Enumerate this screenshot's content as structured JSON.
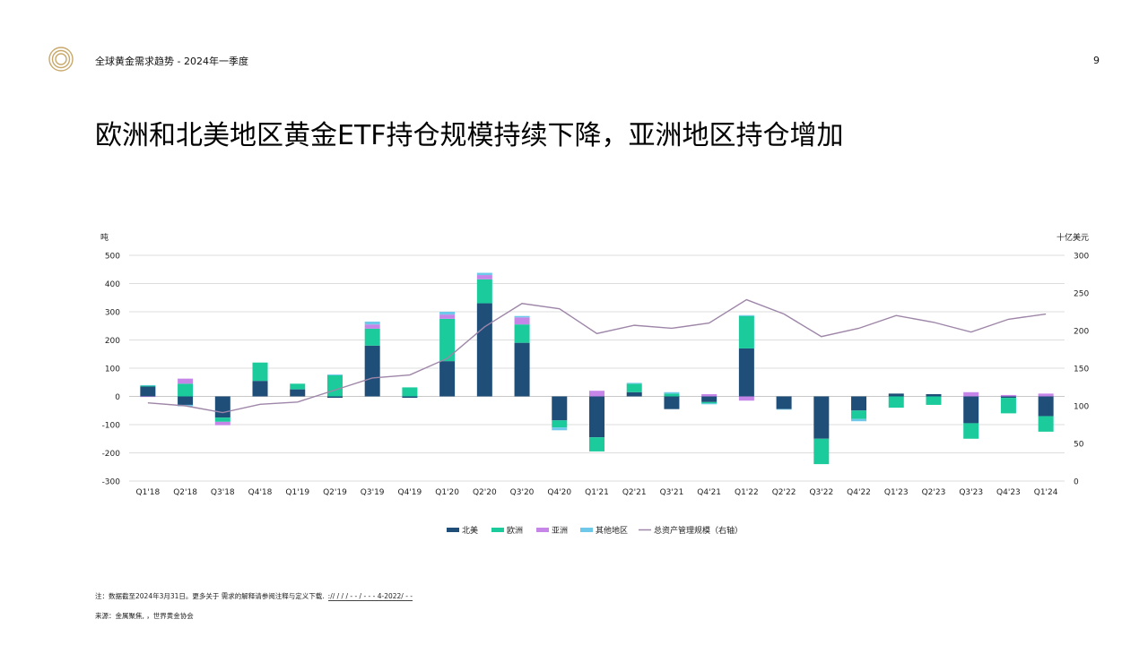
{
  "header": {
    "doc_title": "全球黄金需求趋势 - 2024年一季度",
    "page_number": "9"
  },
  "headline": "欧洲和北美地区黄金ETF持仓规模持续下降，亚洲地区持仓增加",
  "footer": {
    "note": "注：数据截至2024年3月31日。更多关于    需求的解释请参阅注释与定义下载.",
    "note_link": "  ://          /        /        /    -        -      /    -        -     - 4-2022/      -    -",
    "source": "来源：金属聚焦,                    ，世界黄金协会"
  },
  "colors": {
    "north_america": "#1f4e79",
    "europe": "#1ccb9c",
    "asia": "#c586e8",
    "other": "#6ec8ea",
    "aum_line": "#9e86a8",
    "grid": "#dddddd",
    "zero_line": "#c8c8c8"
  },
  "chart_data": {
    "type": "bar",
    "stacked": true,
    "ylabel": "吨",
    "y2label": "十亿美元",
    "ylim": [
      -300,
      500
    ],
    "y2lim": [
      0,
      300
    ],
    "yticks": [
      500,
      400,
      300,
      200,
      100,
      0,
      -100,
      -200,
      -300
    ],
    "y2ticks": [
      300,
      250,
      200,
      150,
      100,
      50,
      0
    ],
    "grid": true,
    "legend_position": "bottom",
    "categories": [
      "Q1'18",
      "Q2'18",
      "Q3'18",
      "Q4'18",
      "Q1'19",
      "Q2'19",
      "Q3'19",
      "Q4'19",
      "Q1'20",
      "Q2'20",
      "Q3'20",
      "Q4'20",
      "Q1'21",
      "Q2'21",
      "Q3'21",
      "Q4'21",
      "Q1'22",
      "Q2'22",
      "Q3'22",
      "Q4'22",
      "Q1'23",
      "Q2'23",
      "Q3'23",
      "Q4'23",
      "Q1'24"
    ],
    "series": [
      {
        "name": "北美",
        "color_key": "north_america",
        "values": [
          35,
          -30,
          -75,
          55,
          25,
          -5,
          180,
          -5,
          125,
          330,
          190,
          -85,
          -145,
          15,
          -45,
          -20,
          170,
          -45,
          -150,
          -50,
          10,
          8,
          -95,
          -5,
          -70
        ]
      },
      {
        "name": "欧洲",
        "color_key": "europe",
        "values": [
          3,
          45,
          -15,
          65,
          20,
          75,
          60,
          32,
          150,
          85,
          65,
          -25,
          -50,
          30,
          10,
          -5,
          115,
          0,
          -90,
          -30,
          -40,
          -30,
          -55,
          -55,
          -55
        ]
      },
      {
        "name": "亚洲",
        "color_key": "asia",
        "values": [
          -2,
          18,
          -12,
          0,
          0,
          0,
          15,
          0,
          15,
          15,
          25,
          0,
          20,
          0,
          0,
          8,
          -15,
          0,
          0,
          0,
          0,
          0,
          15,
          5,
          10
        ]
      },
      {
        "name": "其他地区",
        "color_key": "other",
        "values": [
          2,
          -5,
          0,
          0,
          0,
          3,
          10,
          0,
          10,
          8,
          5,
          -10,
          0,
          3,
          5,
          -3,
          3,
          -2,
          0,
          -8,
          0,
          0,
          0,
          0,
          0
        ]
      }
    ],
    "line": {
      "name": "总资产管理规模（右轴）",
      "color_key": "aum_line",
      "axis": "right",
      "values": [
        104,
        100,
        91,
        102,
        105,
        121,
        137,
        141,
        163,
        205,
        236,
        229,
        196,
        207,
        203,
        210,
        241,
        222,
        192,
        203,
        220,
        211,
        198,
        215,
        222
      ]
    }
  }
}
